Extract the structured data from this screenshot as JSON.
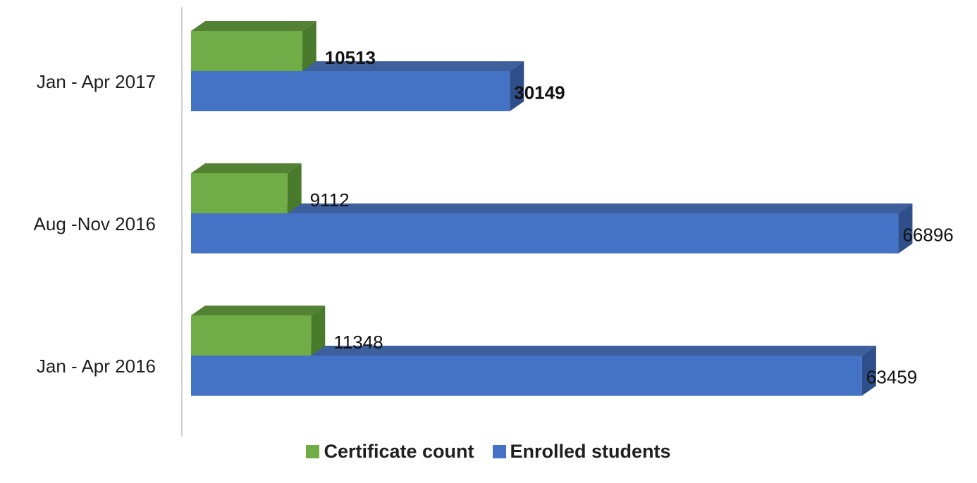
{
  "chart_data": {
    "type": "bar",
    "orientation": "horizontal",
    "3d": true,
    "categories": [
      "Jan - Apr 2017",
      "Aug -Nov 2016",
      "Jan - Apr 2016"
    ],
    "series": [
      {
        "name": "Certificate count",
        "values": [
          10513,
          9112,
          11348
        ],
        "color": "#70ad47",
        "top_color": "#548235",
        "side_color": "#4a7a2c",
        "labels_bold": [
          true,
          false,
          false
        ]
      },
      {
        "name": "Enrolled students",
        "values": [
          30149,
          66896,
          63459
        ],
        "color": "#4472c4",
        "top_color": "#3d5f9c",
        "side_color": "#2f4f8a",
        "labels_bold": [
          true,
          false,
          false
        ]
      }
    ],
    "xlim": [
      0,
      67000
    ],
    "grid": false,
    "legend_position": "bottom",
    "title": "",
    "xlabel": "",
    "ylabel": ""
  }
}
